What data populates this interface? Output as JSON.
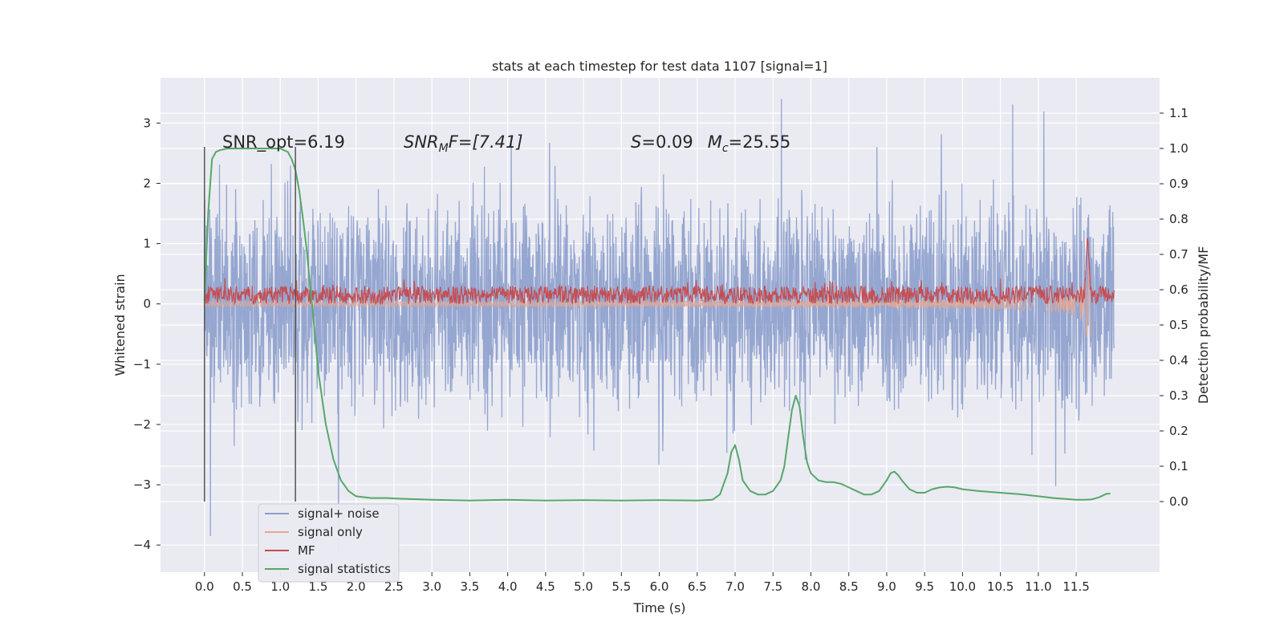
{
  "chart_data": {
    "type": "line",
    "title": "stats at each timestep for test data 1107 [signal=1]",
    "xlabel": "Time (s)",
    "ylabel_left": "Whitened strain",
    "ylabel_right": "Detection probability/MF",
    "xlim": [
      -0.58,
      12.6
    ],
    "ylim_left": [
      -4.45,
      3.75
    ],
    "ylim_right": [
      -0.2,
      1.2
    ],
    "x_ticks": [
      "0.0",
      "0.5",
      "1.0",
      "1.5",
      "2.0",
      "2.5",
      "3.0",
      "3.5",
      "4.0",
      "4.5",
      "5.0",
      "5.5",
      "6.0",
      "6.5",
      "7.0",
      "7.5",
      "8.0",
      "8.5",
      "9.0",
      "9.5",
      "10.0",
      "10.5",
      "11.0",
      "11.5"
    ],
    "y_left_ticks": [
      "3",
      "2",
      "1",
      "0",
      "−1",
      "−2",
      "−3",
      "−4"
    ],
    "y_right_ticks": [
      "1.1",
      "1.0",
      "0.9",
      "0.8",
      "0.7",
      "0.6",
      "0.5",
      "0.4",
      "0.3",
      "0.2",
      "0.1",
      "0.0"
    ],
    "grid": true,
    "legend_position": "lower-left",
    "annotations": {
      "snr_opt": "SNR_opt=6.19",
      "snr_mf_main": "SNR",
      "snr_mf_sub": "M",
      "snr_mf_rest": "F=[7.41]",
      "s_label": "S",
      "s_value": "=0.09",
      "mc_label": "M",
      "mc_sub": "c",
      "mc_value": "=25.55"
    },
    "vertical_markers": [
      0.0,
      1.2
    ],
    "series": [
      {
        "name": "signal+ noise",
        "color": "#8c9fcc",
        "axis": "left",
        "description_values": {
          "x_range": [
            0.0,
            12.0
          ],
          "typical_band": [
            -1.5,
            1.5
          ],
          "max": 3.4,
          "min": -4.1
        }
      },
      {
        "name": "signal only",
        "color": "#e8a890",
        "axis": "left",
        "description_values": {
          "x_range": [
            0.0,
            11.7
          ],
          "chirp_peak_time": 11.65
        }
      },
      {
        "name": "MF",
        "color": "#c44e52",
        "axis": "left",
        "description_values": {
          "x_range": [
            0.0,
            12.0
          ],
          "band": [
            0.0,
            0.3
          ],
          "peak_time": 11.65,
          "peak": 1.15
        }
      },
      {
        "name": "signal statistics",
        "color": "#55a868",
        "axis": "right",
        "x": [
          0.0,
          0.05,
          0.1,
          0.15,
          0.2,
          0.3,
          0.5,
          0.7,
          0.9,
          1.0,
          1.05,
          1.1,
          1.15,
          1.2,
          1.25,
          1.3,
          1.35,
          1.4,
          1.45,
          1.5,
          1.6,
          1.7,
          1.8,
          1.9,
          2.0,
          2.2,
          2.4,
          2.6,
          3.0,
          3.5,
          4.0,
          4.5,
          5.0,
          5.5,
          6.0,
          6.5,
          6.7,
          6.8,
          6.9,
          6.95,
          7.0,
          7.05,
          7.1,
          7.2,
          7.3,
          7.4,
          7.5,
          7.6,
          7.65,
          7.7,
          7.75,
          7.8,
          7.85,
          7.9,
          7.95,
          8.0,
          8.1,
          8.2,
          8.3,
          8.4,
          8.5,
          8.6,
          8.7,
          8.8,
          8.9,
          9.0,
          9.05,
          9.1,
          9.15,
          9.2,
          9.3,
          9.4,
          9.5,
          9.6,
          9.7,
          9.8,
          9.9,
          10.0,
          10.2,
          10.5,
          10.8,
          11.0,
          11.2,
          11.5,
          11.6,
          11.7,
          11.8,
          11.9,
          11.95
        ],
        "values": [
          0.57,
          0.82,
          0.97,
          0.99,
          0.995,
          1.0,
          1.0,
          1.0,
          1.0,
          1.0,
          0.995,
          0.99,
          0.97,
          0.94,
          0.88,
          0.8,
          0.71,
          0.6,
          0.49,
          0.37,
          0.22,
          0.12,
          0.06,
          0.03,
          0.015,
          0.01,
          0.01,
          0.008,
          0.005,
          0.003,
          0.005,
          0.003,
          0.004,
          0.003,
          0.004,
          0.003,
          0.005,
          0.02,
          0.08,
          0.14,
          0.16,
          0.12,
          0.06,
          0.03,
          0.02,
          0.02,
          0.03,
          0.06,
          0.1,
          0.18,
          0.26,
          0.3,
          0.27,
          0.18,
          0.11,
          0.08,
          0.06,
          0.055,
          0.055,
          0.05,
          0.04,
          0.03,
          0.02,
          0.02,
          0.03,
          0.06,
          0.08,
          0.085,
          0.075,
          0.06,
          0.035,
          0.025,
          0.025,
          0.035,
          0.04,
          0.042,
          0.04,
          0.035,
          0.03,
          0.025,
          0.02,
          0.015,
          0.01,
          0.005,
          0.005,
          0.006,
          0.012,
          0.022,
          0.022
        ]
      }
    ]
  }
}
